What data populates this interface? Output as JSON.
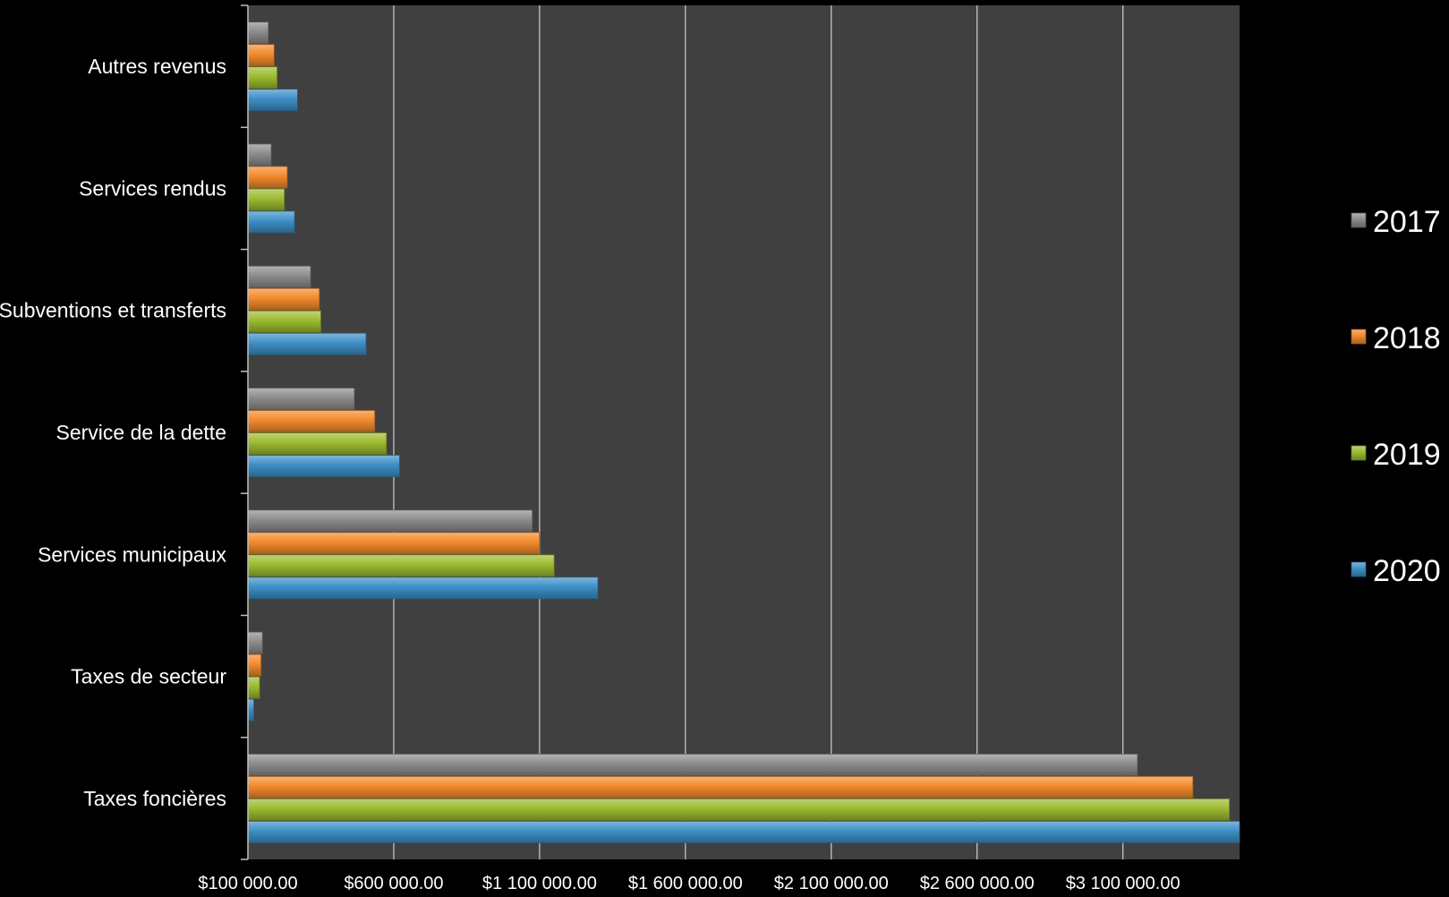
{
  "chart_data": {
    "type": "bar",
    "orientation": "horizontal",
    "categories": [
      "Autres revenus",
      "Services rendus",
      "Subventions et transferts",
      "Service de la dette",
      "Services municipaux",
      "Taxes de secteur",
      "Taxes foncières"
    ],
    "series": [
      {
        "name": "2017",
        "color": "#8c8c8c",
        "values": [
          170000,
          180000,
          315000,
          465000,
          1075000,
          150000,
          3150000
        ]
      },
      {
        "name": "2018",
        "color": "#f28a2c",
        "values": [
          190000,
          235000,
          345000,
          535000,
          1100000,
          145000,
          3340000
        ]
      },
      {
        "name": "2019",
        "color": "#9cbb2f",
        "values": [
          200000,
          225000,
          350000,
          575000,
          1150000,
          140000,
          3465000
        ]
      },
      {
        "name": "2020",
        "color": "#3d8fc6",
        "values": [
          270000,
          260000,
          505000,
          620000,
          1300000,
          120000,
          3500000
        ]
      }
    ],
    "xlim": [
      100000,
      3500000
    ],
    "x_ticks": [
      100000,
      600000,
      1100000,
      1600000,
      2100000,
      2600000,
      3100000
    ],
    "x_tick_labels": [
      "$100 000.00",
      "$600 000.00",
      "$1 100 000.00",
      "$1 600 000.00",
      "$2 100 000.00",
      "$2 600 000.00",
      "$3 100 000.00"
    ],
    "grid": "vertical",
    "legend_position": "right",
    "legend_order": [
      "2017",
      "2018",
      "2019",
      "2020"
    ],
    "plot_background": "#404040",
    "title": "",
    "xlabel": "",
    "ylabel": ""
  }
}
